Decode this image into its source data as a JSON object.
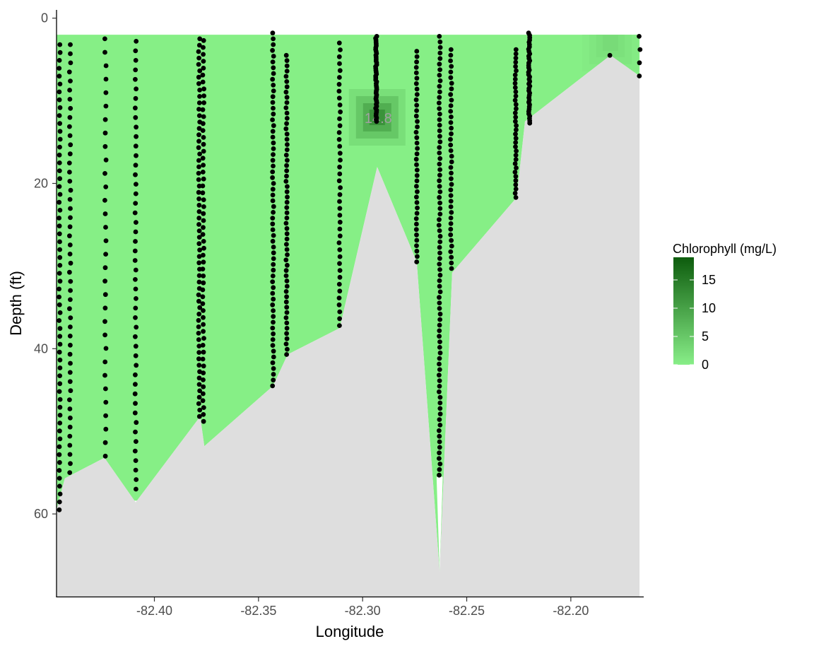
{
  "chart_data": {
    "type": "contour-section",
    "title": "",
    "xlabel": "Longitude",
    "ylabel": "Depth (ft)",
    "xlim": [
      -82.447,
      -82.165
    ],
    "ylim": [
      70,
      -1
    ],
    "y_reversed": true,
    "x_ticks": [
      -82.4,
      -82.35,
      -82.3,
      -82.25,
      -82.2
    ],
    "x_tick_labels": [
      "-82.40",
      "-82.35",
      "-82.30",
      "-82.25",
      "-82.20"
    ],
    "y_ticks": [
      0,
      20,
      40,
      60
    ],
    "y_tick_labels": [
      "0",
      "20",
      "40",
      "60"
    ],
    "grid": false,
    "legend": {
      "title": "Chlorophyll (mg/L)",
      "placement": "right",
      "breaks": [
        0,
        5,
        10,
        15
      ],
      "break_labels": [
        "0",
        "5",
        "10",
        "15"
      ],
      "range": [
        0,
        19
      ],
      "color_low": "#88ee88",
      "color_high": "#0d5c0d"
    },
    "water_surface_depth": 2,
    "water_fill_color": "#86ef86",
    "bottom_fill_color": "#dedede",
    "bottom_profile": [
      {
        "lon": -82.447,
        "depth": 70
      },
      {
        "lon": -82.447,
        "depth": 59.5
      },
      {
        "lon": -82.443,
        "depth": 55.7
      },
      {
        "lon": -82.424,
        "depth": 53.2
      },
      {
        "lon": -82.409,
        "depth": 58.6
      },
      {
        "lon": -82.378,
        "depth": 48.2
      },
      {
        "lon": -82.376,
        "depth": 51.8
      },
      {
        "lon": -82.343,
        "depth": 44.5
      },
      {
        "lon": -82.336,
        "depth": 40.7
      },
      {
        "lon": -82.311,
        "depth": 37.5
      },
      {
        "lon": -82.293,
        "depth": 18
      },
      {
        "lon": -82.274,
        "depth": 29.5
      },
      {
        "lon": -82.263,
        "depth": 67
      },
      {
        "lon": -82.257,
        "depth": 30.8
      },
      {
        "lon": -82.226,
        "depth": 21.7
      },
      {
        "lon": -82.222,
        "depth": 12.5
      },
      {
        "lon": -82.181,
        "depth": 4.5
      },
      {
        "lon": -82.167,
        "depth": 7
      },
      {
        "lon": -82.167,
        "depth": 70
      }
    ],
    "water_white_gaps": [
      [
        {
          "lon": -82.4105,
          "depth": 58.4
        },
        {
          "lon": -82.409,
          "depth": 58.9
        },
        {
          "lon": -82.4075,
          "depth": 58.4
        }
      ],
      [
        {
          "lon": -82.2645,
          "depth": 55.5
        },
        {
          "lon": -82.263,
          "depth": 67
        },
        {
          "lon": -82.2615,
          "depth": 55.5
        }
      ]
    ],
    "hotspots": [
      {
        "lon": -82.293,
        "depth": 12,
        "value": 14.8
      },
      {
        "lon": -82.181,
        "depth": 3,
        "value": 3
      }
    ],
    "contour_labels": [
      {
        "lon": -82.2925,
        "depth": 12.1,
        "text": "14.8"
      }
    ],
    "sample_casts": [
      {
        "lon": -82.4455,
        "top": 3.2,
        "bottom": 59.5,
        "n": 60
      },
      {
        "lon": -82.4405,
        "top": 3.2,
        "bottom": 55,
        "n": 48
      },
      {
        "lon": -82.4235,
        "top": 2.5,
        "bottom": 53,
        "n": 32
      },
      {
        "lon": -82.409,
        "top": 2.8,
        "bottom": 57,
        "n": 48
      },
      {
        "lon": -82.3785,
        "top": 2.5,
        "bottom": 48.2,
        "n": 60
      },
      {
        "lon": -82.3765,
        "top": 2.7,
        "bottom": 48.8,
        "n": 56
      },
      {
        "lon": -82.343,
        "top": 1.8,
        "bottom": 44.5,
        "n": 62
      },
      {
        "lon": -82.3365,
        "top": 4.5,
        "bottom": 40.7,
        "n": 58
      },
      {
        "lon": -82.311,
        "top": 3.0,
        "bottom": 37.2,
        "n": 42
      },
      {
        "lon": -82.2935,
        "top": 2.2,
        "bottom": 12.5,
        "n": 46
      },
      {
        "lon": -82.274,
        "top": 4.0,
        "bottom": 29.5,
        "n": 40
      },
      {
        "lon": -82.263,
        "top": 2.2,
        "bottom": 55.3,
        "n": 80
      },
      {
        "lon": -82.2575,
        "top": 3.8,
        "bottom": 30.3,
        "n": 40
      },
      {
        "lon": -82.2265,
        "top": 3.8,
        "bottom": 21.7,
        "n": 36
      },
      {
        "lon": -82.22,
        "top": 1.8,
        "bottom": 12.7,
        "n": 40
      },
      {
        "lon": -82.181,
        "top": 4.5,
        "bottom": 4.5,
        "n": 1
      },
      {
        "lon": -82.167,
        "top": 2.2,
        "bottom": 7.0,
        "n": 4
      }
    ]
  }
}
